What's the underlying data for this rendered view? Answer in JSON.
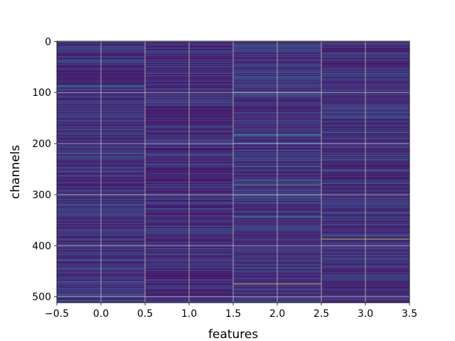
{
  "chart_data": {
    "type": "heatmap",
    "title": "",
    "xlabel": "features",
    "ylabel": "channels",
    "xlim": [
      -0.5,
      3.5
    ],
    "ylim": [
      511.5,
      -0.5
    ],
    "y_inverted": true,
    "grid": true,
    "colormap": "viridis",
    "n_rows": 512,
    "n_cols": 4,
    "x_ticks": [
      -0.5,
      0.0,
      0.5,
      1.0,
      1.5,
      2.0,
      2.5,
      3.0,
      3.5
    ],
    "x_tick_labels": [
      "−0.5",
      "0.0",
      "0.5",
      "1.0",
      "1.5",
      "2.0",
      "2.5",
      "3.0",
      "3.5"
    ],
    "y_ticks": [
      0,
      100,
      200,
      300,
      400,
      500
    ],
    "y_tick_labels": [
      "0",
      "100",
      "200",
      "300",
      "400",
      "500"
    ],
    "columns": [
      {
        "feature": 0,
        "base": 0.07,
        "highlights": [
          {
            "row": 0,
            "value": 0.55
          },
          {
            "row": 18,
            "value": 0.3
          },
          {
            "row": 40,
            "value": 0.28
          },
          {
            "row": 86,
            "value": 0.55
          },
          {
            "row": 88,
            "value": 0.4
          },
          {
            "row": 125,
            "value": 0.3
          },
          {
            "row": 160,
            "value": 0.28
          },
          {
            "row": 219,
            "value": 0.5
          },
          {
            "row": 226,
            "value": 0.45
          },
          {
            "row": 300,
            "value": 0.28
          },
          {
            "row": 394,
            "value": 0.3
          },
          {
            "row": 430,
            "value": 0.35
          },
          {
            "row": 470,
            "value": 0.28
          },
          {
            "row": 497,
            "value": 0.45
          }
        ]
      },
      {
        "feature": 1,
        "base": 0.06,
        "highlights": [
          {
            "row": 120,
            "value": 0.3
          },
          {
            "row": 275,
            "value": 0.28
          },
          {
            "row": 362,
            "value": 0.35
          },
          {
            "row": 500,
            "value": 0.3
          }
        ]
      },
      {
        "feature": 2,
        "base": 0.08,
        "highlights": [
          {
            "row": 8,
            "value": 0.55
          },
          {
            "row": 20,
            "value": 0.35
          },
          {
            "row": 70,
            "value": 0.35
          },
          {
            "row": 100,
            "value": 0.82
          },
          {
            "row": 140,
            "value": 0.3
          },
          {
            "row": 183,
            "value": 0.6
          },
          {
            "row": 185,
            "value": 0.5
          },
          {
            "row": 245,
            "value": 0.55
          },
          {
            "row": 281,
            "value": 0.7
          },
          {
            "row": 344,
            "value": 0.6
          },
          {
            "row": 420,
            "value": 0.35
          },
          {
            "row": 475,
            "value": 0.95
          }
        ]
      },
      {
        "feature": 3,
        "base": 0.07,
        "highlights": [
          {
            "row": 24,
            "value": 0.45
          },
          {
            "row": 100,
            "value": 0.4
          },
          {
            "row": 178,
            "value": 0.45
          },
          {
            "row": 252,
            "value": 0.45
          },
          {
            "row": 278,
            "value": 0.55
          },
          {
            "row": 336,
            "value": 0.4
          },
          {
            "row": 387,
            "value": 0.92
          },
          {
            "row": 432,
            "value": 0.45
          },
          {
            "row": 465,
            "value": 0.5
          },
          {
            "row": 497,
            "value": 0.4
          }
        ]
      }
    ]
  }
}
